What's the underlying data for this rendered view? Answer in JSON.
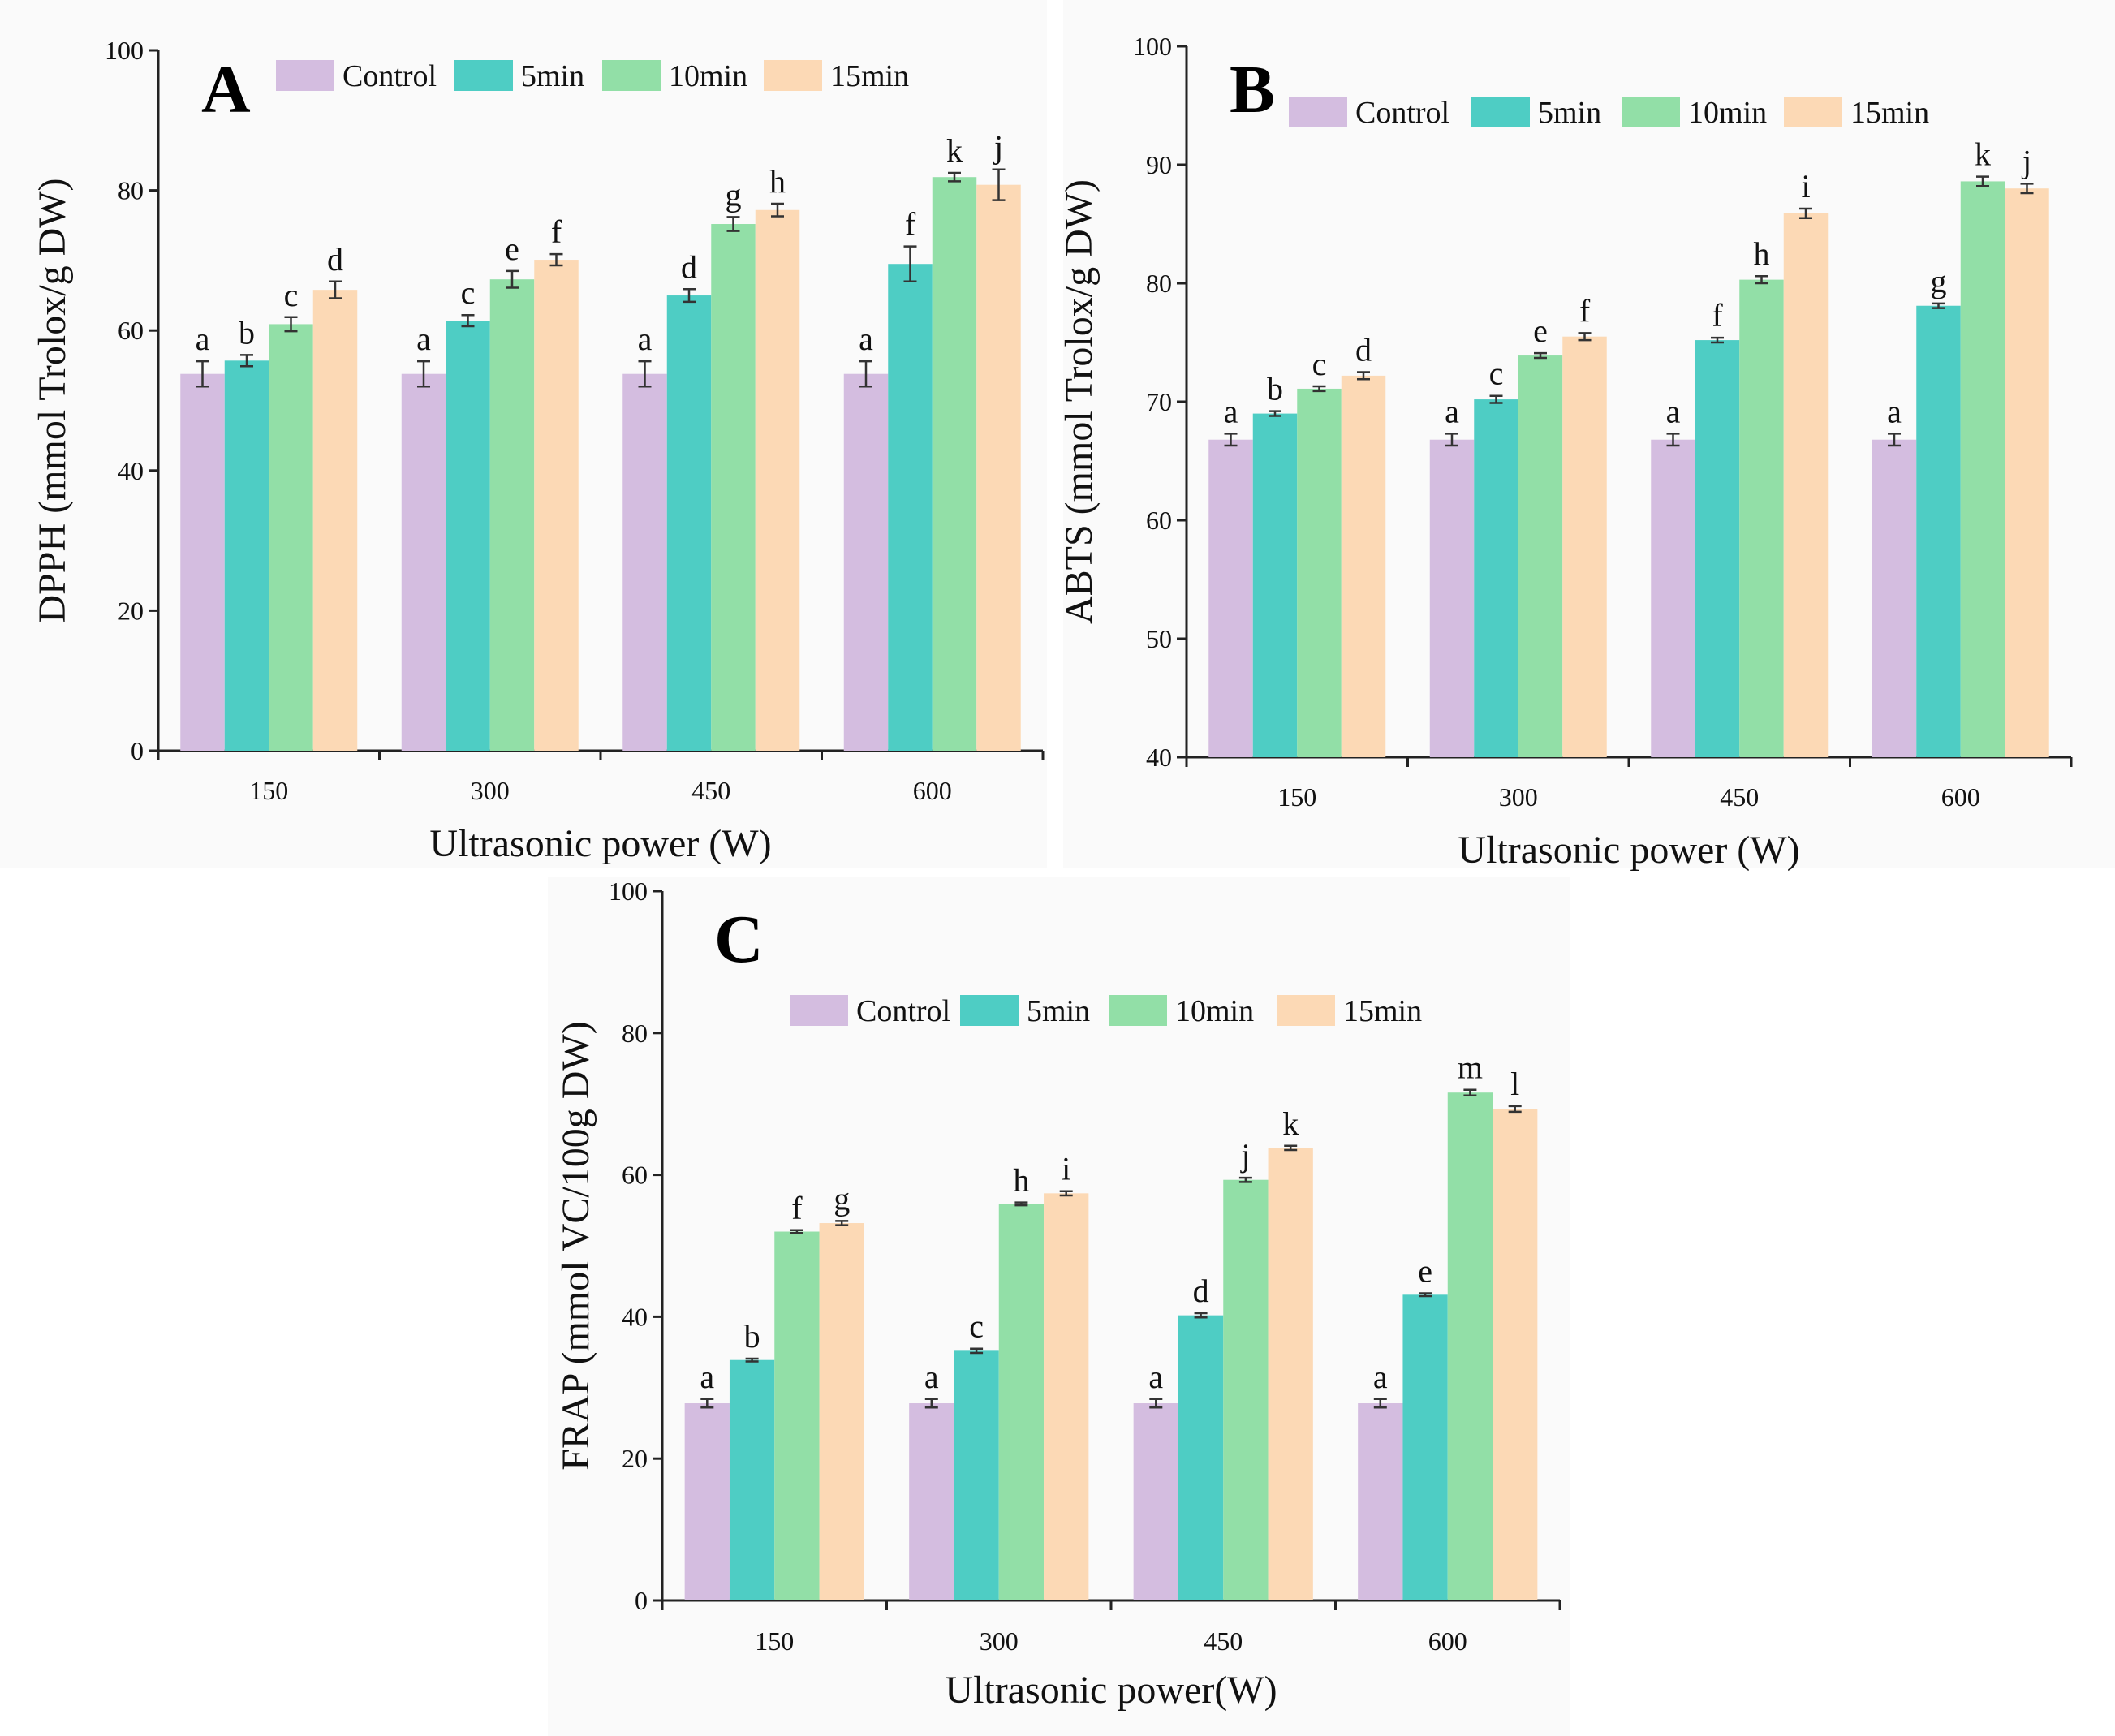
{
  "colors": {
    "Control": "#d4bde0",
    "5min": "#4ecdc4",
    "10min": "#92dfa7",
    "15min": "#fcd9b5"
  },
  "chart_data": [
    {
      "id": "A",
      "type": "bar",
      "panel_label": "A",
      "categories": [
        "150",
        "300",
        "450",
        "600"
      ],
      "xlabel": "Ultrasonic power (W)",
      "ylabel": "DPPH (mmol Trolox/g DW)",
      "ylim": [
        0,
        100
      ],
      "yticks": [
        "0",
        "20",
        "40",
        "60",
        "80",
        "100"
      ],
      "legend_position": "top",
      "series": [
        {
          "name": "Control",
          "values": [
            53.8,
            53.8,
            53.8,
            53.8
          ],
          "errors": [
            1.8,
            1.8,
            1.8,
            1.8
          ],
          "labels": [
            "a",
            "a",
            "a",
            "a"
          ]
        },
        {
          "name": "5min",
          "values": [
            55.7,
            61.4,
            65.0,
            69.5
          ],
          "errors": [
            0.8,
            0.8,
            0.9,
            2.5
          ],
          "labels": [
            "b",
            "c",
            "d",
            "f"
          ]
        },
        {
          "name": "10min",
          "values": [
            60.9,
            67.3,
            75.2,
            81.9
          ],
          "errors": [
            1.0,
            1.2,
            1.0,
            0.6
          ],
          "labels": [
            "c",
            "e",
            "g",
            "k"
          ]
        },
        {
          "name": "15min",
          "values": [
            65.8,
            70.1,
            77.2,
            80.8
          ],
          "errors": [
            1.2,
            0.8,
            0.9,
            2.2
          ],
          "labels": [
            "d",
            "f",
            "h",
            "j"
          ]
        }
      ]
    },
    {
      "id": "B",
      "type": "bar",
      "panel_label": "B",
      "categories": [
        "150",
        "300",
        "450",
        "600"
      ],
      "xlabel": "Ultrasonic power (W)",
      "ylabel": "ABTS (mmol Trolox/g DW)",
      "ylim": [
        40,
        100
      ],
      "yticks": [
        "40",
        "50",
        "60",
        "70",
        "80",
        "90",
        "100"
      ],
      "legend_position": "top",
      "series": [
        {
          "name": "Control",
          "values": [
            66.8,
            66.8,
            66.8,
            66.8
          ],
          "errors": [
            0.5,
            0.5,
            0.5,
            0.5
          ],
          "labels": [
            "a",
            "a",
            "a",
            "a"
          ]
        },
        {
          "name": "5min",
          "values": [
            69.0,
            70.2,
            75.2,
            78.1
          ],
          "errors": [
            0.2,
            0.3,
            0.2,
            0.2
          ],
          "labels": [
            "b",
            "c",
            "f",
            "g"
          ]
        },
        {
          "name": "10min",
          "values": [
            71.1,
            73.9,
            80.3,
            88.6
          ],
          "errors": [
            0.2,
            0.2,
            0.3,
            0.4
          ],
          "labels": [
            "c",
            "e",
            "h",
            "k"
          ]
        },
        {
          "name": "15min",
          "values": [
            72.2,
            75.5,
            85.9,
            88.0
          ],
          "errors": [
            0.3,
            0.3,
            0.4,
            0.4
          ],
          "labels": [
            "d",
            "f",
            "i",
            "j"
          ]
        }
      ]
    },
    {
      "id": "C",
      "type": "bar",
      "panel_label": "C",
      "categories": [
        "150",
        "300",
        "450",
        "600"
      ],
      "xlabel": "Ultrasonic power(W)",
      "ylabel": "FRAP (mmol VC/100g DW)",
      "ylim": [
        0,
        100
      ],
      "yticks": [
        "0",
        "20",
        "40",
        "60",
        "80",
        "100"
      ],
      "legend_position": "top",
      "series": [
        {
          "name": "Control",
          "values": [
            27.8,
            27.8,
            27.8,
            27.8
          ],
          "errors": [
            0.6,
            0.6,
            0.6,
            0.6
          ],
          "labels": [
            "a",
            "a",
            "a",
            "a"
          ]
        },
        {
          "name": "5min",
          "values": [
            33.9,
            35.2,
            40.2,
            43.1
          ],
          "errors": [
            0.2,
            0.3,
            0.3,
            0.2
          ],
          "labels": [
            "b",
            "c",
            "d",
            "e"
          ]
        },
        {
          "name": "10min",
          "values": [
            52.0,
            55.9,
            59.3,
            71.6
          ],
          "errors": [
            0.2,
            0.2,
            0.3,
            0.4
          ],
          "labels": [
            "f",
            "h",
            "j",
            "m"
          ]
        },
        {
          "name": "15min",
          "values": [
            53.2,
            57.4,
            63.8,
            69.3
          ],
          "errors": [
            0.3,
            0.3,
            0.3,
            0.4
          ],
          "labels": [
            "g",
            "i",
            "k",
            "l"
          ]
        }
      ]
    }
  ]
}
